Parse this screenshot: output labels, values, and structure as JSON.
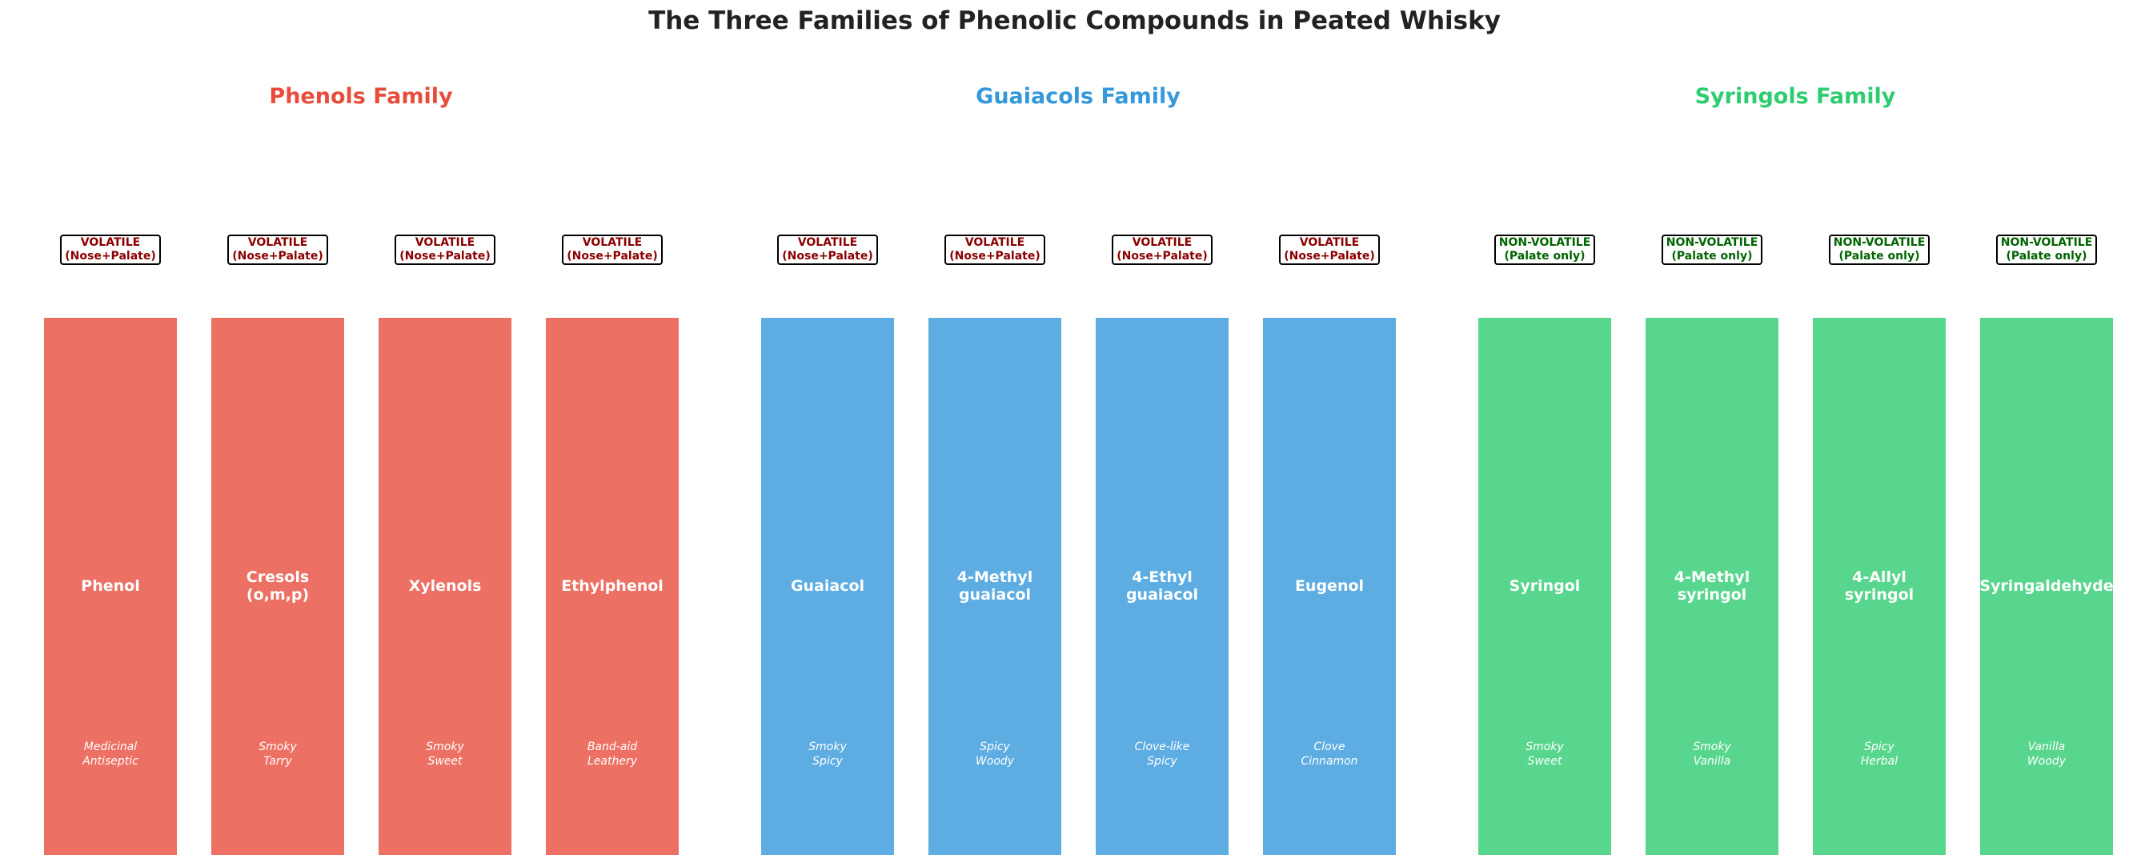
{
  "title": "The Three Families of Phenolic Compounds in Peated Whisky",
  "families": [
    {
      "name": "Phenols Family",
      "title_color": "#e74c3c",
      "bar_color": "#ec7063",
      "compounds": [
        {
          "name": "Phenol",
          "notes": "Medicinal\nAntiseptic",
          "volatility": "VOLATILE",
          "detection": "(Nose+Palate)"
        },
        {
          "name": "Cresols\n(o,m,p)",
          "notes": "Smoky\nTarry",
          "volatility": "VOLATILE",
          "detection": "(Nose+Palate)"
        },
        {
          "name": "Xylenols",
          "notes": "Smoky\nSweet",
          "volatility": "VOLATILE",
          "detection": "(Nose+Palate)"
        },
        {
          "name": "Ethylphenol",
          "notes": "Band-aid\nLeathery",
          "volatility": "VOLATILE",
          "detection": "(Nose+Palate)"
        }
      ]
    },
    {
      "name": "Guaiacols Family",
      "title_color": "#3498db",
      "bar_color": "#5dade2",
      "compounds": [
        {
          "name": "Guaiacol",
          "notes": "Smoky\nSpicy",
          "volatility": "VOLATILE",
          "detection": "(Nose+Palate)"
        },
        {
          "name": "4-Methyl\nguaiacol",
          "notes": "Spicy\nWoody",
          "volatility": "VOLATILE",
          "detection": "(Nose+Palate)"
        },
        {
          "name": "4-Ethyl\nguaiacol",
          "notes": "Clove-like\nSpicy",
          "volatility": "VOLATILE",
          "detection": "(Nose+Palate)"
        },
        {
          "name": "Eugenol",
          "notes": "Clove\nCinnamon",
          "volatility": "VOLATILE",
          "detection": "(Nose+Palate)"
        }
      ]
    },
    {
      "name": "Syringols Family",
      "title_color": "#2ecc71",
      "bar_color": "#58d68d",
      "compounds": [
        {
          "name": "Syringol",
          "notes": "Smoky\nSweet",
          "volatility": "NON-VOLATILE",
          "detection": "(Palate only)"
        },
        {
          "name": "4-Methyl\nsyringol",
          "notes": "Smoky\nVanilla",
          "volatility": "NON-VOLATILE",
          "detection": "(Palate only)"
        },
        {
          "name": "4-Allyl\nsyringol",
          "notes": "Spicy\nHerbal",
          "volatility": "NON-VOLATILE",
          "detection": "(Palate only)"
        },
        {
          "name": "Syringaldehyde",
          "notes": "Vanilla\nWoody",
          "volatility": "NON-VOLATILE",
          "detection": "(Palate only)"
        }
      ]
    }
  ],
  "badge_colors": {
    "VOLATILE": "#8b0000",
    "NON-VOLATILE": "#006400"
  }
}
